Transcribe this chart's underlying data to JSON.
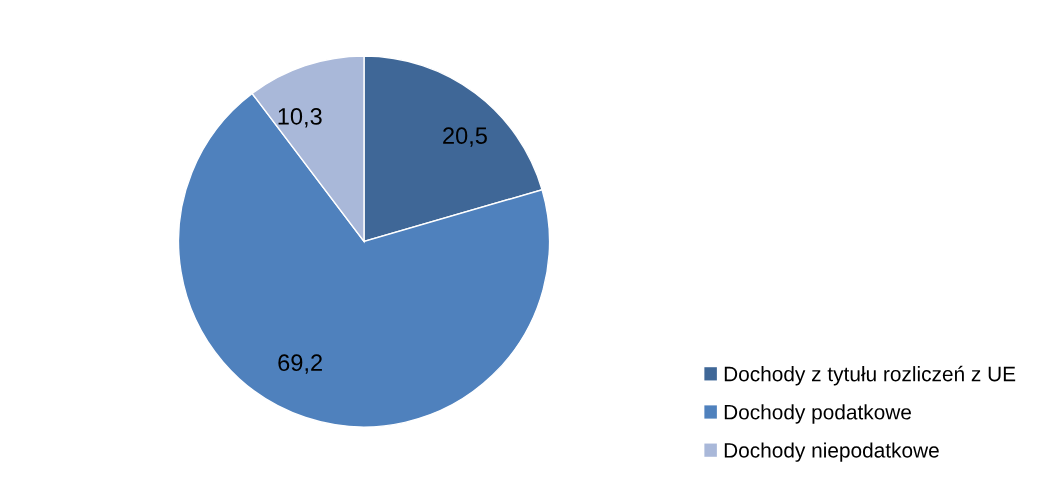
{
  "chart_data": {
    "type": "pie",
    "categories": [
      "Dochody z tytułu rozliczeń z UE",
      "Dochody podatkowe",
      "Dochody niepodatkowe"
    ],
    "values": [
      20.5,
      69.2,
      10.3
    ],
    "value_labels": [
      "20,5",
      "69,2",
      "10,3"
    ],
    "colors": [
      "#3f6797",
      "#4f81bd",
      "#a9b8d9"
    ],
    "legend": "bottom right"
  }
}
